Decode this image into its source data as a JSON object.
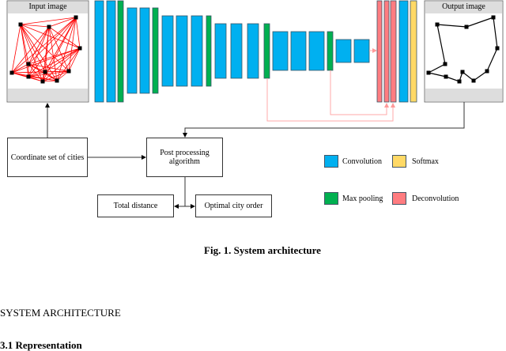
{
  "figure": {
    "input_panel": {
      "title": "Input image"
    },
    "output_panel": {
      "title": "Output image"
    },
    "boxes": {
      "coordinates": "Coordinate set of cities",
      "post_processing": "Post processing algorithm",
      "total_distance": "Total distance",
      "optimal_order": "Optimal city order"
    },
    "legend": [
      {
        "label": "Convolution",
        "color": "#00b0f0"
      },
      {
        "label": "Softmax",
        "color": "#ffd966"
      },
      {
        "label": "Max pooling",
        "color": "#00b050"
      },
      {
        "label": "Deconvolution",
        "color": "#ff7c80"
      }
    ],
    "colors": {
      "edges": "#ff0000",
      "skip": "#ffaaaa",
      "panel": "#dddddd"
    },
    "caption": "Fig. 1. System architecture"
  },
  "body": {
    "section_heading": "SYSTEM ARCHITECTURE",
    "subsection_heading": "3.1 Representation"
  }
}
